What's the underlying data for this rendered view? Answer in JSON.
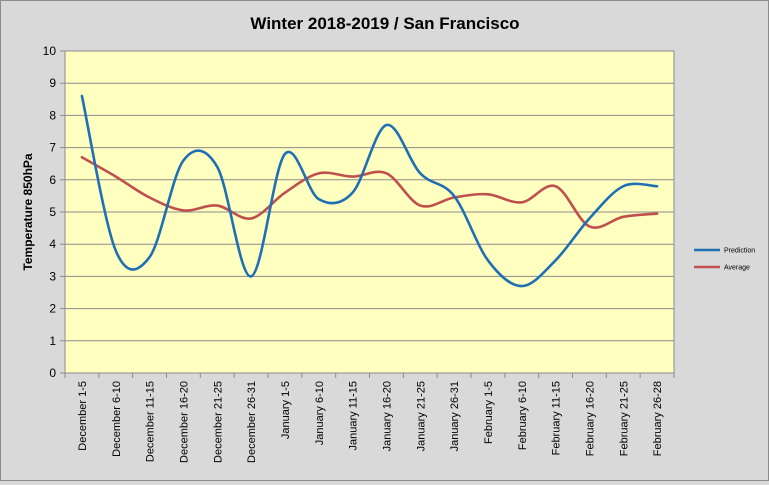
{
  "chart_data": {
    "type": "line",
    "title": "Winter 2018-2019 / San Francisco",
    "xlabel": "",
    "ylabel": "Temperature 850hPa",
    "ylim": [
      0,
      10
    ],
    "yticks": [
      0,
      1,
      2,
      3,
      4,
      5,
      6,
      7,
      8,
      9,
      10
    ],
    "grid": true,
    "legend_position": "right",
    "plot_background": "#ffffc0",
    "categories": [
      "December 1-5",
      "December 6-10",
      "December 11-15",
      "December 16-20",
      "December 21-25",
      "December 26-31",
      "January 1-5",
      "January 6-10",
      "January 11-15",
      "January 16-20",
      "January 21-25",
      "January 26-31",
      "February 1-5",
      "February 6-10",
      "February 11-15",
      "February 16-20",
      "February 21-25",
      "February 26-28"
    ],
    "series": [
      {
        "name": "Prediction",
        "color": "#1f6fb4",
        "values": [
          8.6,
          3.8,
          3.6,
          6.6,
          6.4,
          3.0,
          6.8,
          5.4,
          5.6,
          7.7,
          6.2,
          5.5,
          3.5,
          2.7,
          3.5,
          4.8,
          5.8,
          5.8
        ]
      },
      {
        "name": "Average",
        "color": "#c0504d",
        "values": [
          6.7,
          6.1,
          5.45,
          5.05,
          5.2,
          4.8,
          5.6,
          6.2,
          6.1,
          6.2,
          5.2,
          5.45,
          5.55,
          5.3,
          5.8,
          4.55,
          4.85,
          4.95
        ]
      }
    ]
  }
}
